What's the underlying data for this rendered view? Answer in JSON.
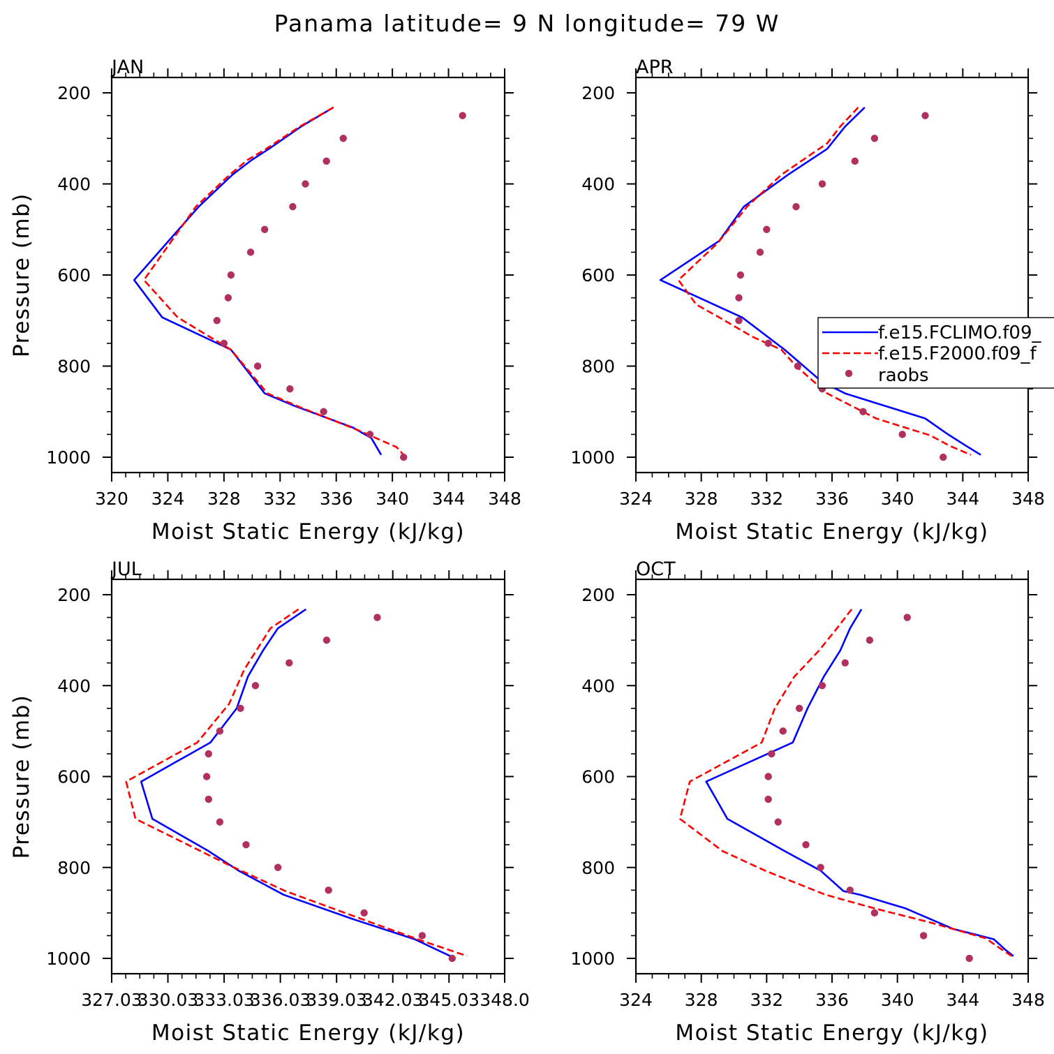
{
  "title": "Panama  latitude= 9 N longitude= 79 W",
  "colors": {
    "model1": "#0000ff",
    "model2": "#ff0000",
    "obs": "#b03060"
  },
  "legend": {
    "entries": [
      "f.e15.FCLIMO.f09_",
      "f.e15.F2000.f09_f",
      "raobs"
    ],
    "placement": "inside APR panel, right edge (clipped by page)"
  },
  "chart_data": [
    {
      "type": "line",
      "title": "JAN",
      "xlabel": "Moist Static Energy (kJ/kg)",
      "ylabel": "Pressure (mb)",
      "xlim": [
        320,
        348
      ],
      "ylim": [
        1000,
        200
      ],
      "xticks": [
        320,
        324,
        328,
        332,
        336,
        340,
        344,
        348
      ],
      "xtick_labels": [
        "320",
        "324",
        "328",
        "332",
        "336",
        "340",
        "344",
        "348"
      ],
      "yticks": [
        200,
        400,
        600,
        800,
        1000
      ],
      "series": [
        {
          "name": "f.e15.FCLIMO.f09_",
          "style": "solid",
          "points": [
            [
              335.8,
              232
            ],
            [
              333.5,
              274
            ],
            [
              331.2,
              323
            ],
            [
              330.0,
              347
            ],
            [
              328.6,
              380
            ],
            [
              326.2,
              450
            ],
            [
              321.6,
              611
            ],
            [
              323.6,
              693
            ],
            [
              328.5,
              764
            ],
            [
              330.9,
              860
            ],
            [
              333.0,
              887
            ],
            [
              337.2,
              935
            ],
            [
              338.5,
              958
            ],
            [
              339.2,
              995
            ]
          ]
        },
        {
          "name": "f.e15.F2000.f09_f",
          "style": "dashed",
          "points": [
            [
              335.8,
              232
            ],
            [
              333.4,
              274
            ],
            [
              331.0,
              323
            ],
            [
              329.7,
              347
            ],
            [
              328.4,
              380
            ],
            [
              326.0,
              450
            ],
            [
              322.3,
              611
            ],
            [
              324.7,
              693
            ],
            [
              328.5,
              764
            ],
            [
              331.1,
              860
            ],
            [
              333.4,
              890
            ],
            [
              337.5,
              940
            ],
            [
              340.3,
              978
            ],
            [
              340.8,
              995
            ]
          ]
        },
        {
          "name": "raobs",
          "style": "markers",
          "points": [
            [
              345.0,
              250
            ],
            [
              336.5,
              300
            ],
            [
              335.3,
              350
            ],
            [
              333.8,
              400
            ],
            [
              332.9,
              450
            ],
            [
              330.9,
              500
            ],
            [
              329.9,
              550
            ],
            [
              328.5,
              600
            ],
            [
              328.3,
              650
            ],
            [
              327.5,
              700
            ],
            [
              328.0,
              750
            ],
            [
              330.4,
              800
            ],
            [
              332.7,
              850
            ],
            [
              335.1,
              900
            ],
            [
              338.4,
              950
            ],
            [
              340.8,
              1000
            ]
          ]
        }
      ]
    },
    {
      "type": "line",
      "title": "APR",
      "xlabel": "Moist Static Energy (kJ/kg)",
      "ylabel": "",
      "xlim": [
        324,
        348
      ],
      "ylim": [
        1000,
        200
      ],
      "xticks": [
        324,
        328,
        332,
        336,
        340,
        344,
        348
      ],
      "xtick_labels": [
        "324",
        "328",
        "332",
        "336",
        "340",
        "344",
        "348"
      ],
      "yticks": [
        200,
        400,
        600,
        800,
        1000
      ],
      "series": [
        {
          "name": "f.e15.FCLIMO.f09_",
          "style": "solid",
          "points": [
            [
              338.0,
              232
            ],
            [
              336.8,
              274
            ],
            [
              335.7,
              323
            ],
            [
              333.3,
              380
            ],
            [
              330.6,
              450
            ],
            [
              329.1,
              525
            ],
            [
              325.5,
              611
            ],
            [
              330.5,
              693
            ],
            [
              333.1,
              764
            ],
            [
              335.4,
              835
            ],
            [
              336.8,
              860
            ],
            [
              341.7,
              915
            ],
            [
              343.1,
              950
            ],
            [
              344.2,
              975
            ],
            [
              345.1,
              995
            ]
          ]
        },
        {
          "name": "f.e15.F2000.f09_f",
          "style": "dashed",
          "points": [
            [
              337.6,
              232
            ],
            [
              336.5,
              274
            ],
            [
              335.7,
              311
            ],
            [
              335.2,
              323
            ],
            [
              332.9,
              380
            ],
            [
              330.8,
              450
            ],
            [
              329.0,
              530
            ],
            [
              326.6,
              611
            ],
            [
              327.7,
              665
            ],
            [
              329.1,
              693
            ],
            [
              331.1,
              735
            ],
            [
              332.9,
              764
            ],
            [
              333.8,
              800
            ],
            [
              335.7,
              860
            ],
            [
              338.7,
              915
            ],
            [
              342.0,
              952
            ],
            [
              343.2,
              975
            ],
            [
              344.5,
              995
            ]
          ]
        },
        {
          "name": "raobs",
          "style": "markers",
          "points": [
            [
              341.7,
              250
            ],
            [
              338.6,
              300
            ],
            [
              337.4,
              350
            ],
            [
              335.4,
              400
            ],
            [
              333.8,
              450
            ],
            [
              332.0,
              500
            ],
            [
              331.6,
              550
            ],
            [
              330.4,
              600
            ],
            [
              330.3,
              650
            ],
            [
              330.3,
              700
            ],
            [
              332.1,
              750
            ],
            [
              333.9,
              800
            ],
            [
              335.4,
              850
            ],
            [
              337.9,
              900
            ],
            [
              340.3,
              950
            ],
            [
              342.8,
              1000
            ]
          ]
        }
      ]
    },
    {
      "type": "line",
      "title": "JUL",
      "xlabel": "Moist Static Energy (kJ/kg)",
      "ylabel": "Pressure (mb)",
      "xlim": [
        327.03,
        348.0
      ],
      "ylim": [
        1000,
        200
      ],
      "xticks": [
        327.03,
        330.03,
        333.03,
        336.03,
        339.03,
        342.03,
        345.03,
        348.0
      ],
      "xtick_labels": [
        "327.03",
        "330.03",
        "333.03",
        "336.03",
        "339.03",
        "342.03",
        "345.03",
        "348.0"
      ],
      "yticks": [
        200,
        400,
        600,
        800,
        1000
      ],
      "series": [
        {
          "name": "f.e15.FCLIMO.f09_",
          "style": "solid",
          "points": [
            [
              337.4,
              232
            ],
            [
              335.9,
              274
            ],
            [
              335.1,
              323
            ],
            [
              334.3,
              380
            ],
            [
              333.7,
              450
            ],
            [
              332.3,
              525
            ],
            [
              328.6,
              611
            ],
            [
              329.2,
              693
            ],
            [
              332.2,
              764
            ],
            [
              333.8,
              807
            ],
            [
              336.2,
              860
            ],
            [
              340.0,
              915
            ],
            [
              343.2,
              958
            ],
            [
              345.1,
              995
            ]
          ]
        },
        {
          "name": "f.e15.F2000.f09_f",
          "style": "dashed",
          "points": [
            [
              337.0,
              232
            ],
            [
              335.5,
              274
            ],
            [
              334.1,
              365
            ],
            [
              333.3,
              440
            ],
            [
              331.6,
              525
            ],
            [
              327.8,
              611
            ],
            [
              328.3,
              693
            ],
            [
              333.3,
              795
            ],
            [
              336.3,
              852
            ],
            [
              340.2,
              911
            ],
            [
              343.5,
              960
            ],
            [
              346.0,
              995
            ]
          ]
        },
        {
          "name": "raobs",
          "style": "markers",
          "points": [
            [
              341.2,
              250
            ],
            [
              338.5,
              300
            ],
            [
              336.5,
              350
            ],
            [
              334.7,
              400
            ],
            [
              333.9,
              450
            ],
            [
              332.8,
              500
            ],
            [
              332.2,
              550
            ],
            [
              332.1,
              600
            ],
            [
              332.2,
              650
            ],
            [
              332.8,
              700
            ],
            [
              334.2,
              750
            ],
            [
              335.9,
              800
            ],
            [
              338.6,
              850
            ],
            [
              340.5,
              900
            ],
            [
              343.6,
              950
            ],
            [
              345.2,
              1000
            ]
          ]
        }
      ]
    },
    {
      "type": "line",
      "title": "OCT",
      "xlabel": "Moist Static Energy (kJ/kg)",
      "ylabel": "",
      "xlim": [
        324,
        348
      ],
      "ylim": [
        1000,
        200
      ],
      "xticks": [
        324,
        328,
        332,
        336,
        340,
        344,
        348
      ],
      "xtick_labels": [
        "324",
        "328",
        "332",
        "336",
        "340",
        "344",
        "348"
      ],
      "yticks": [
        200,
        400,
        600,
        800,
        1000
      ],
      "series": [
        {
          "name": "f.e15.FCLIMO.f09_",
          "style": "solid",
          "points": [
            [
              337.8,
              232
            ],
            [
              337.1,
              274
            ],
            [
              336.5,
              323
            ],
            [
              335.5,
              380
            ],
            [
              334.5,
              450
            ],
            [
              333.6,
              525
            ],
            [
              328.3,
              611
            ],
            [
              329.6,
              693
            ],
            [
              333.1,
              764
            ],
            [
              335.3,
              807
            ],
            [
              336.7,
              852
            ],
            [
              337.7,
              860
            ],
            [
              340.5,
              890
            ],
            [
              343.4,
              935
            ],
            [
              345.9,
              958
            ],
            [
              346.6,
              981
            ],
            [
              347.1,
              995
            ]
          ]
        },
        {
          "name": "f.e15.F2000.f09_f",
          "style": "dashed",
          "points": [
            [
              337.2,
              232
            ],
            [
              336.3,
              274
            ],
            [
              335.2,
              323
            ],
            [
              333.7,
              380
            ],
            [
              332.5,
              450
            ],
            [
              331.7,
              525
            ],
            [
              327.3,
              611
            ],
            [
              326.7,
              693
            ],
            [
              329.3,
              764
            ],
            [
              331.9,
              807
            ],
            [
              335.6,
              860
            ],
            [
              338.6,
              890
            ],
            [
              341.9,
              920
            ],
            [
              345.4,
              956
            ],
            [
              346.4,
              981
            ],
            [
              347.0,
              995
            ]
          ]
        },
        {
          "name": "raobs",
          "style": "markers",
          "points": [
            [
              340.6,
              250
            ],
            [
              338.3,
              300
            ],
            [
              336.8,
              350
            ],
            [
              335.4,
              400
            ],
            [
              334.0,
              450
            ],
            [
              333.0,
              500
            ],
            [
              332.3,
              550
            ],
            [
              332.1,
              600
            ],
            [
              332.1,
              650
            ],
            [
              332.7,
              700
            ],
            [
              334.4,
              750
            ],
            [
              335.3,
              800
            ],
            [
              337.1,
              850
            ],
            [
              338.6,
              900
            ],
            [
              341.6,
              950
            ],
            [
              344.4,
              1000
            ]
          ]
        }
      ]
    }
  ]
}
